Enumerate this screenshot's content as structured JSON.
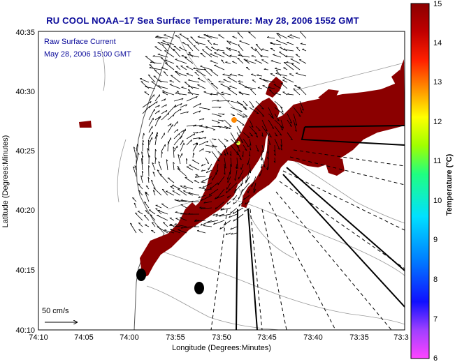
{
  "title": "RU COOL  NOAA–17  Sea Surface Temperature:  May 28, 2006 1552 GMT",
  "annotation": {
    "line1": "Raw Surface Current",
    "line2": "May 28, 2006 15:00 GMT"
  },
  "scale": {
    "label": "50 cm/s"
  },
  "axes": {
    "xlabel": "Longitude (Degrees:Minutes)",
    "ylabel": "Latitude (Degrees:Minutes)",
    "x_ticks": [
      "74:10",
      "74:05",
      "74:00",
      "73:55",
      "73:50",
      "73:45",
      "73:40",
      "73:35",
      "73:3"
    ],
    "y_ticks": [
      "40:35",
      "40:30",
      "40:25",
      "40:20",
      "40:15",
      "40:10"
    ]
  },
  "colorbar": {
    "label": "Temperature (°C)",
    "ticks": [
      "15",
      "14",
      "13",
      "12",
      "11",
      "10",
      "9",
      "8",
      "7",
      "6"
    ],
    "min": 6,
    "max": 15
  },
  "colors": {
    "sst": "#8b0000",
    "land": "#ffffff",
    "title": "#0a0a9a"
  }
}
